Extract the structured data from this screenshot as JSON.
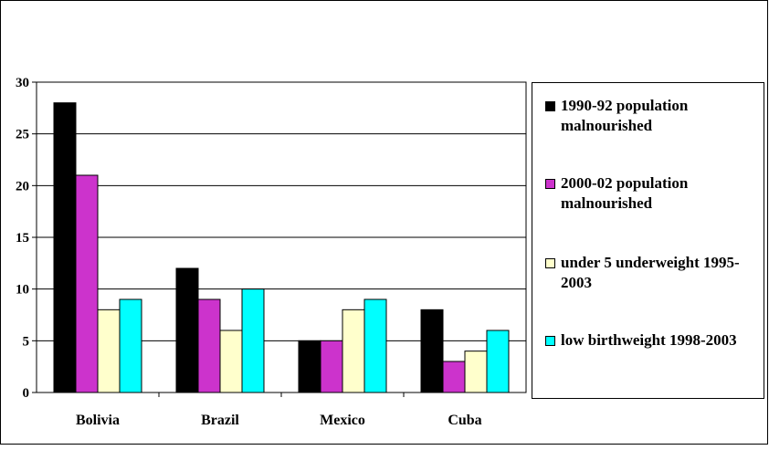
{
  "chart_data": {
    "type": "bar",
    "categories": [
      "Bolivia",
      "Brazil",
      "Mexico",
      "Cuba"
    ],
    "series": [
      {
        "name": "1990-92 population malnourished",
        "color": "#000000",
        "values": [
          28,
          12,
          5,
          8
        ]
      },
      {
        "name": "2000-02 population malnourished",
        "color": "#cc33cc",
        "values": [
          21,
          9,
          5,
          3
        ]
      },
      {
        "name": "under 5 underweight 1995-2003",
        "color": "#ffffcc",
        "values": [
          8,
          6,
          8,
          4
        ]
      },
      {
        "name": "low birthweight 1998-2003",
        "color": "#00ffff",
        "values": [
          9,
          10,
          9,
          6
        ]
      }
    ],
    "y_ticks": [
      "0",
      "5",
      "10",
      "15",
      "20",
      "25",
      "30"
    ],
    "ylim": [
      0,
      30
    ],
    "grid": true,
    "legend_position": "right"
  }
}
